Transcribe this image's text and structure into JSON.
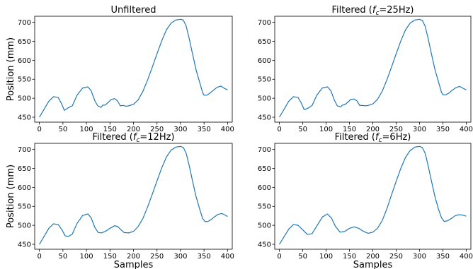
{
  "figure": {
    "line_color": "#1f77b4"
  },
  "chart_data": [
    {
      "type": "line",
      "title": "Unfiltered",
      "title_base": "Unfiltered",
      "title_sub": "",
      "title_tail": "",
      "xlabel": "",
      "ylabel": "Position (mm)",
      "xlim": [
        -10,
        410
      ],
      "ylim": [
        437,
        716
      ],
      "xticks": [
        0,
        50,
        100,
        150,
        200,
        250,
        300,
        350,
        400
      ],
      "yticks": [
        450,
        500,
        550,
        600,
        650,
        700
      ],
      "series": [
        {
          "x": [
            0,
            10,
            20,
            30,
            40,
            47,
            53,
            58,
            63,
            70,
            80,
            92,
            103,
            110,
            118,
            124,
            131,
            135,
            140,
            147,
            153,
            160,
            166,
            172,
            178,
            184,
            190,
            200,
            210,
            220,
            230,
            240,
            250,
            260,
            270,
            280,
            290,
            300,
            306,
            312,
            318,
            325,
            333,
            340,
            347,
            350,
            356,
            362,
            370,
            378,
            386,
            392,
            400
          ],
          "y": [
            450,
            471,
            492,
            504,
            502,
            486,
            468,
            472,
            476,
            480,
            508,
            527,
            530,
            520,
            493,
            480,
            476,
            482,
            482,
            490,
            497,
            499,
            493,
            480,
            481,
            479,
            480,
            484,
            496,
            518,
            548,
            582,
            617,
            651,
            680,
            698,
            706,
            708,
            706,
            690,
            660,
            620,
            575,
            545,
            515,
            508,
            508,
            513,
            521,
            529,
            532,
            527,
            522
          ]
        }
      ]
    },
    {
      "type": "line",
      "title": "Filtered (f_c=25Hz)",
      "title_base": "Filtered (",
      "title_sub": "c",
      "title_tail": "=25Hz)",
      "xlabel": "",
      "ylabel": "",
      "xlim": [
        -10,
        410
      ],
      "ylim": [
        437,
        716
      ],
      "xticks": [
        0,
        50,
        100,
        150,
        200,
        250,
        300,
        350,
        400
      ],
      "yticks": [
        450,
        500,
        550,
        600,
        650,
        700
      ],
      "series": [
        {
          "x": [
            0,
            10,
            20,
            30,
            40,
            47,
            53,
            58,
            63,
            70,
            80,
            92,
            103,
            110,
            118,
            124,
            131,
            135,
            140,
            147,
            153,
            160,
            166,
            172,
            178,
            184,
            190,
            200,
            210,
            220,
            230,
            240,
            250,
            260,
            270,
            280,
            290,
            300,
            306,
            312,
            318,
            325,
            333,
            340,
            347,
            350,
            356,
            362,
            370,
            378,
            386,
            392,
            400
          ],
          "y": [
            450,
            471,
            492,
            504,
            502,
            487,
            470,
            472,
            475,
            481,
            508,
            527,
            530,
            520,
            494,
            480,
            477,
            482,
            483,
            490,
            497,
            498,
            493,
            481,
            481,
            480,
            481,
            485,
            497,
            518,
            548,
            582,
            617,
            651,
            680,
            698,
            706,
            708,
            705,
            690,
            660,
            620,
            576,
            546,
            516,
            509,
            509,
            513,
            521,
            528,
            531,
            527,
            522
          ]
        }
      ]
    },
    {
      "type": "line",
      "title": "Filtered (f_c=12Hz)",
      "title_base": "Filtered (",
      "title_sub": "c",
      "title_tail": "=12Hz)",
      "xlabel": "Samples",
      "ylabel": "Position (mm)",
      "xlim": [
        -10,
        410
      ],
      "ylim": [
        437,
        716
      ],
      "xticks": [
        0,
        50,
        100,
        150,
        200,
        250,
        300,
        350,
        400
      ],
      "yticks": [
        450,
        500,
        550,
        600,
        650,
        700
      ],
      "series": [
        {
          "x": [
            0,
            10,
            20,
            30,
            40,
            48,
            55,
            62,
            70,
            80,
            92,
            103,
            110,
            118,
            125,
            132,
            140,
            150,
            160,
            166,
            172,
            180,
            190,
            200,
            210,
            220,
            230,
            240,
            250,
            260,
            270,
            280,
            290,
            300,
            306,
            312,
            318,
            325,
            333,
            340,
            347,
            352,
            358,
            365,
            372,
            380,
            388,
            395,
            400
          ],
          "y": [
            450,
            471,
            492,
            504,
            502,
            488,
            472,
            471,
            477,
            505,
            526,
            530,
            520,
            494,
            481,
            480,
            484,
            492,
            499,
            497,
            490,
            481,
            480,
            484,
            497,
            518,
            548,
            582,
            617,
            651,
            680,
            698,
            706,
            708,
            705,
            690,
            660,
            620,
            576,
            546,
            518,
            510,
            510,
            515,
            522,
            529,
            531,
            527,
            523
          ]
        }
      ]
    },
    {
      "type": "line",
      "title": "Filtered (f_c=6Hz)",
      "title_base": "Filtered (",
      "title_sub": "c",
      "title_tail": "=6Hz)",
      "xlabel": "Samples",
      "ylabel": "",
      "xlim": [
        -10,
        410
      ],
      "ylim": [
        437,
        716
      ],
      "xticks": [
        0,
        50,
        100,
        150,
        200,
        250,
        300,
        350,
        400
      ],
      "yticks": [
        450,
        500,
        550,
        600,
        650,
        700
      ],
      "series": [
        {
          "x": [
            0,
            10,
            20,
            30,
            40,
            50,
            60,
            70,
            80,
            92,
            103,
            112,
            120,
            130,
            140,
            150,
            160,
            170,
            180,
            190,
            200,
            210,
            220,
            230,
            240,
            250,
            260,
            270,
            280,
            290,
            300,
            306,
            312,
            318,
            325,
            333,
            340,
            347,
            353,
            360,
            368,
            376,
            384,
            392,
            400
          ],
          "y": [
            450,
            470,
            490,
            502,
            500,
            488,
            476,
            478,
            498,
            522,
            530,
            518,
            497,
            482,
            484,
            492,
            496,
            492,
            484,
            479,
            482,
            492,
            512,
            543,
            580,
            616,
            650,
            679,
            697,
            706,
            708,
            705,
            690,
            660,
            620,
            576,
            545,
            520,
            510,
            512,
            518,
            525,
            528,
            527,
            524
          ]
        }
      ]
    }
  ]
}
